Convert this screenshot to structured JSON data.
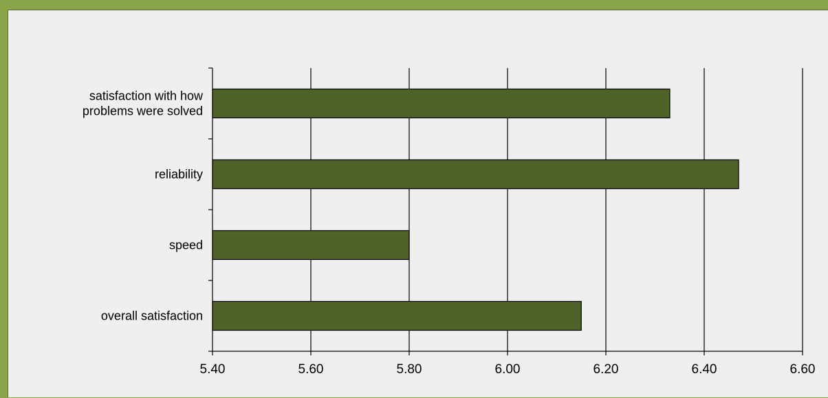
{
  "chart_data": {
    "type": "bar",
    "orientation": "horizontal",
    "categories": [
      [
        "satisfaction with how",
        "problems were solved"
      ],
      [
        "reliability"
      ],
      [
        "speed"
      ],
      [
        "overall satisfaction"
      ]
    ],
    "values": [
      6.33,
      6.47,
      5.8,
      6.15
    ],
    "xlim": [
      5.4,
      6.6
    ],
    "xticks": [
      "5.40",
      "5.60",
      "5.80",
      "6.00",
      "6.20",
      "6.40",
      "6.60"
    ],
    "title": "",
    "xlabel": "",
    "ylabel": "",
    "grid": "vertical",
    "legend": "none",
    "colors": {
      "bar": "#4f6228",
      "bar_border": "#000000",
      "frame": "#8aa44a",
      "background": "#efefef"
    }
  }
}
